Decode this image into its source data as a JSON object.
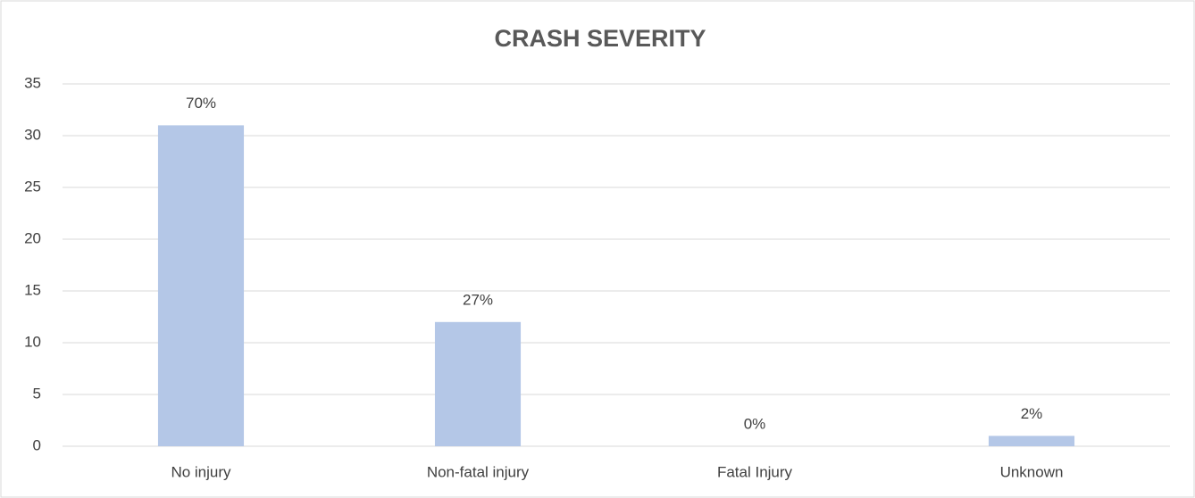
{
  "chart_data": {
    "type": "bar",
    "title": "CRASH SEVERITY",
    "categories": [
      "No injury",
      "Non-fatal injury",
      "Fatal Injury",
      "Unknown"
    ],
    "values": [
      31,
      12,
      0,
      1
    ],
    "value_labels": [
      "70%",
      "27%",
      "0%",
      "2%"
    ],
    "color": "#b4c7e7",
    "ylim": [
      0,
      35
    ],
    "yticks": [
      0,
      5,
      10,
      15,
      20,
      25,
      30,
      35
    ],
    "grid": true
  }
}
